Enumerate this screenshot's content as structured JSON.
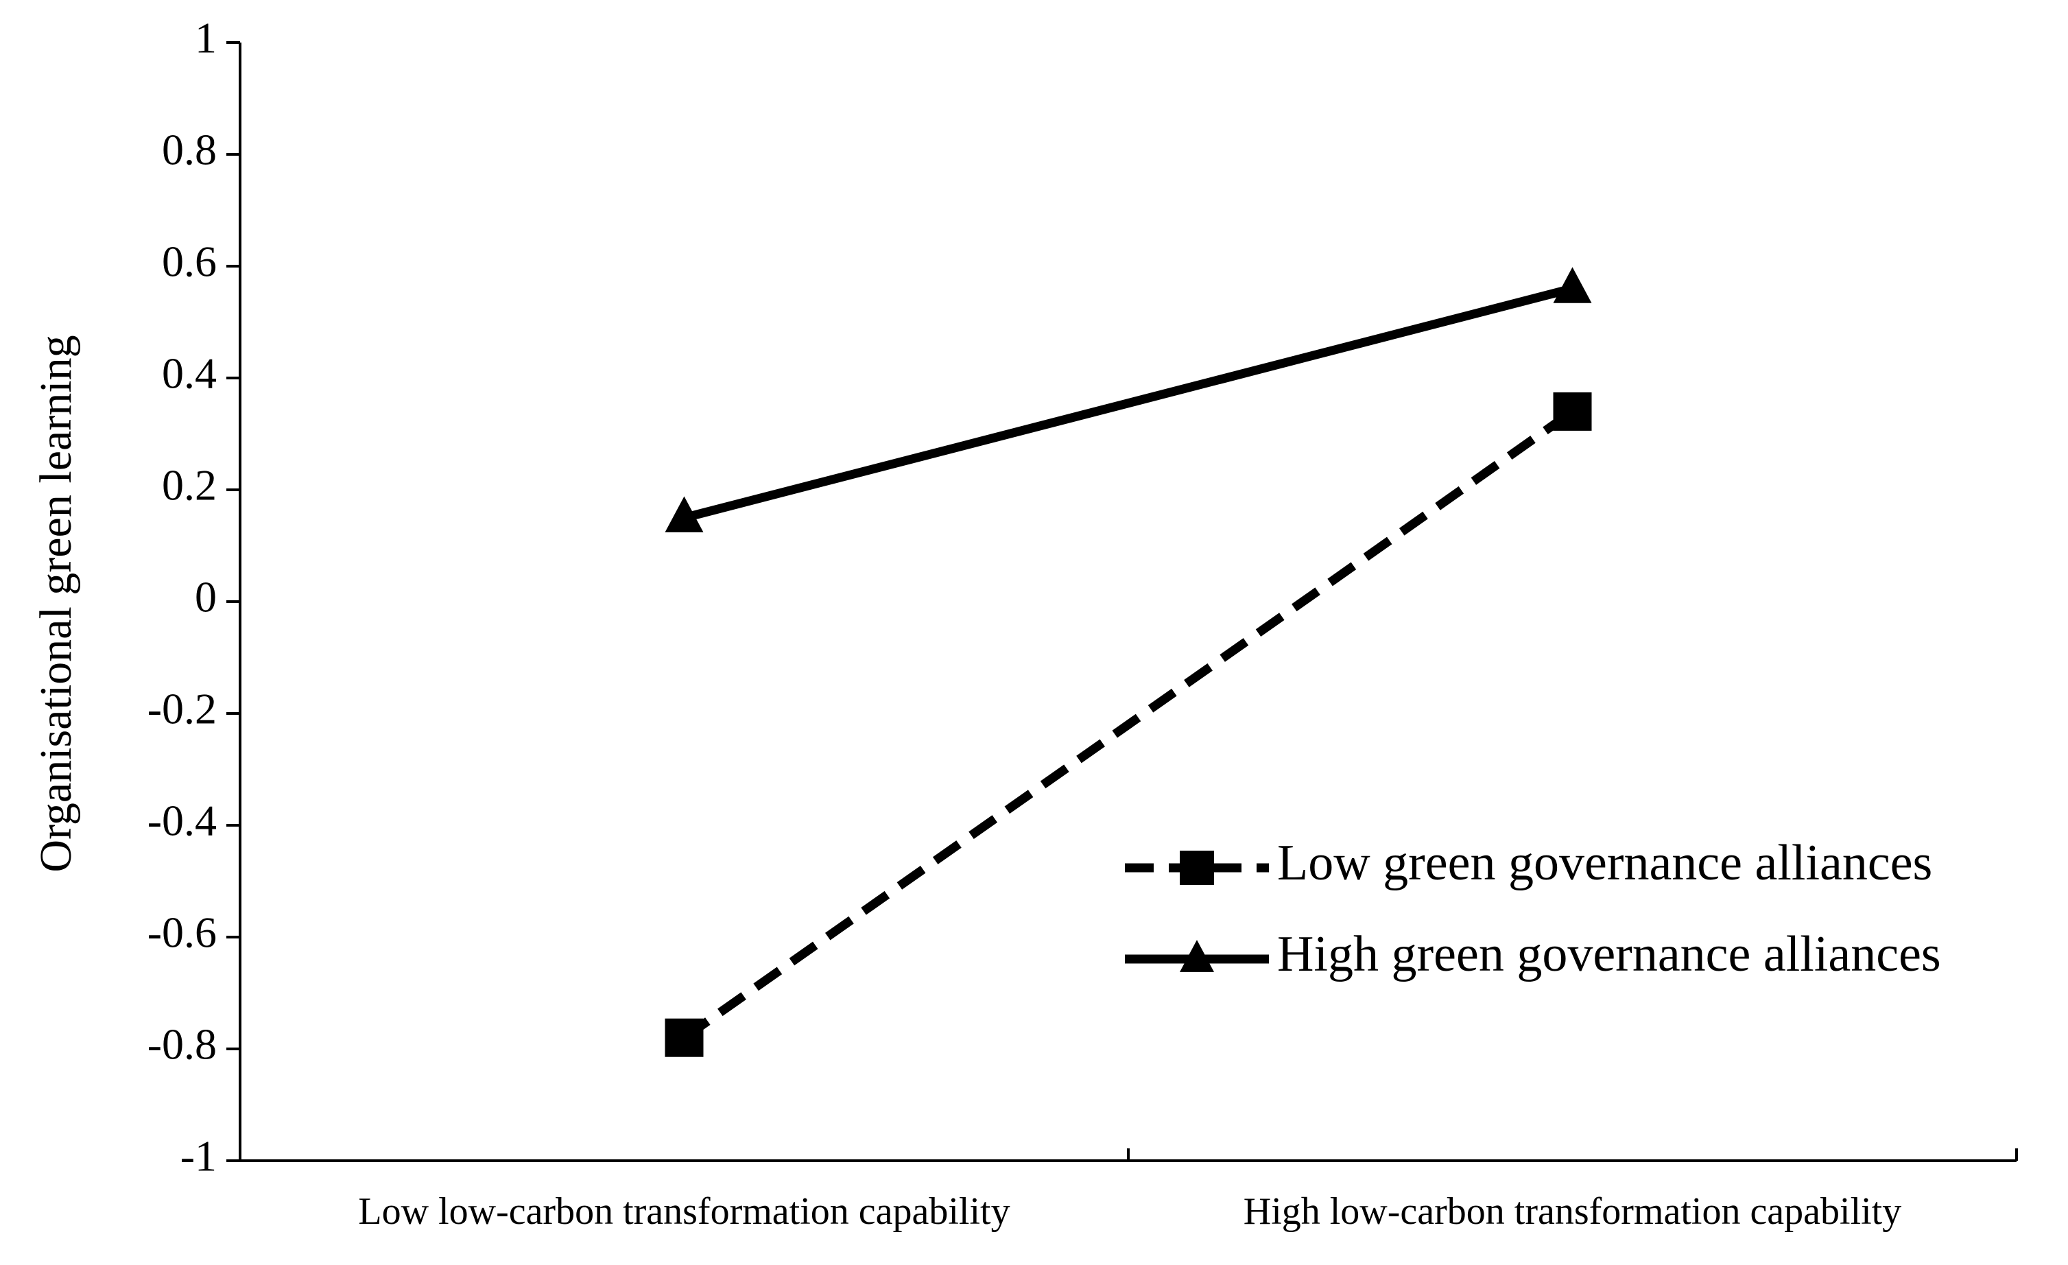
{
  "chart_data": {
    "type": "line",
    "title": "",
    "xlabel": "",
    "ylabel": "Organisational green learning",
    "categories": [
      "Low low-carbon transformation capability",
      "High low-carbon transformation capability"
    ],
    "ylim": [
      -1,
      1
    ],
    "yticks": [
      "1",
      "0.8",
      "0.6",
      "0.4",
      "0.2",
      "0",
      "-0.2",
      "-0.4",
      "-0.6",
      "-0.8",
      "-1"
    ],
    "ytick_values": [
      1,
      0.8,
      0.6,
      0.4,
      0.2,
      0,
      -0.2,
      -0.4,
      -0.6,
      -0.8,
      -1
    ],
    "grid": false,
    "legend_position": "lower-right",
    "series": [
      {
        "name": "Low green governance alliances",
        "values": [
          -0.78,
          0.34
        ],
        "marker": "square",
        "line_style": "dashed",
        "color": "#000000"
      },
      {
        "name": "High green governance alliances",
        "values": [
          0.15,
          0.56
        ],
        "marker": "triangle",
        "line_style": "solid",
        "color": "#000000"
      }
    ]
  }
}
